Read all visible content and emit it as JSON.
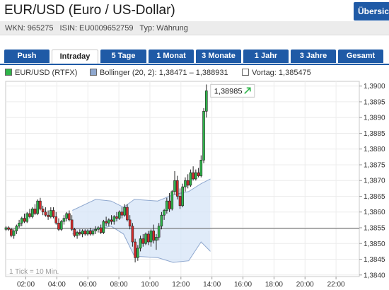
{
  "header": {
    "title": "EUR/USD (Euro / US-Dollar)",
    "overview_label": "Übersicht",
    "wkn": "WKN: 965275",
    "isin": "ISIN: EU0009652759",
    "type": "Typ: Währung"
  },
  "tabs": [
    {
      "label": "Push",
      "active": false
    },
    {
      "label": "Intraday",
      "active": true
    },
    {
      "label": "5 Tage",
      "active": false
    },
    {
      "label": "1 Monat",
      "active": false
    },
    {
      "label": "3 Monate",
      "active": false
    },
    {
      "label": "1 Jahr",
      "active": false
    },
    {
      "label": "3 Jahre",
      "active": false
    },
    {
      "label": "Gesamt",
      "active": false
    }
  ],
  "legend": {
    "price": "EUR/USD (RTFX)",
    "bollinger": "Bollinger (20, 2): 1,38471 – 1,388931",
    "prev_close": "Vortag: 1,385475"
  },
  "colors": {
    "brand_blue": "#1f5aa6",
    "candle_up": "#2fb54a",
    "candle_down": "#d62b2b",
    "bollinger_fill": "#d6e4f7",
    "bollinger_line": "#8fa8cf",
    "prev_close_line": "#666666"
  },
  "chart_data": {
    "type": "candlestick",
    "x_axis": {
      "min_hour": 0.7,
      "max_hour": 23.5,
      "tick_labels": [
        "02:00",
        "04:00",
        "06:00",
        "08:00",
        "10:00",
        "12:00",
        "14:00",
        "16:00",
        "18:00",
        "20:00",
        "22:00"
      ],
      "tick_hours": [
        2,
        4,
        6,
        8,
        10,
        12,
        14,
        16,
        18,
        20,
        22
      ]
    },
    "y_axis": {
      "min": 1.38395,
      "max": 1.39015,
      "side": "right",
      "tick_values": [
        1.384,
        1.3845,
        1.385,
        1.3855,
        1.386,
        1.3865,
        1.387,
        1.3875,
        1.388,
        1.3885,
        1.389,
        1.3895,
        1.39
      ],
      "tick_labels": [
        "1,3840",
        "1,3845",
        "1,3850",
        "1,3855",
        "1,3860",
        "1,3865",
        "1,3870",
        "1,3875",
        "1,3880",
        "1,3885",
        "1,3890",
        "1,3895",
        "1,3900"
      ]
    },
    "interval_label": "1 Tick = 10 Min.",
    "last_price": 1.38985,
    "last_price_label": "1,38985",
    "prev_close": 1.385475,
    "bollinger_upper": [
      [
        5.0,
        1.38605
      ],
      [
        6.5,
        1.3864
      ],
      [
        7.5,
        1.38635
      ],
      [
        8.3,
        1.38615
      ],
      [
        9.0,
        1.3864
      ],
      [
        10.5,
        1.38635
      ],
      [
        11.5,
        1.38655
      ],
      [
        12.5,
        1.38665
      ],
      [
        13.3,
        1.3869
      ],
      [
        13.9,
        1.38705
      ]
    ],
    "bollinger_lower": [
      [
        5.0,
        1.3853
      ],
      [
        6.5,
        1.38545
      ],
      [
        7.5,
        1.38555
      ],
      [
        8.3,
        1.3853
      ],
      [
        9.0,
        1.3846
      ],
      [
        10.5,
        1.38455
      ],
      [
        11.5,
        1.3844
      ],
      [
        12.5,
        1.38445
      ],
      [
        13.3,
        1.38505
      ],
      [
        13.9,
        1.38475
      ]
    ],
    "candles": [
      {
        "h": 0.72,
        "o": 1.38545,
        "hi": 1.38555,
        "lo": 1.3854,
        "c": 1.3855
      },
      {
        "h": 0.89,
        "o": 1.3855,
        "hi": 1.38555,
        "lo": 1.3854,
        "c": 1.38545
      },
      {
        "h": 1.06,
        "o": 1.38545,
        "hi": 1.3855,
        "lo": 1.3852,
        "c": 1.38525
      },
      {
        "h": 1.23,
        "o": 1.38525,
        "hi": 1.38545,
        "lo": 1.38515,
        "c": 1.3854
      },
      {
        "h": 1.4,
        "o": 1.3854,
        "hi": 1.3856,
        "lo": 1.3853,
        "c": 1.38555
      },
      {
        "h": 1.57,
        "o": 1.38555,
        "hi": 1.38575,
        "lo": 1.3855,
        "c": 1.38565
      },
      {
        "h": 1.74,
        "o": 1.38565,
        "hi": 1.38585,
        "lo": 1.38555,
        "c": 1.3858
      },
      {
        "h": 1.91,
        "o": 1.3858,
        "hi": 1.38595,
        "lo": 1.38565,
        "c": 1.3857
      },
      {
        "h": 2.08,
        "o": 1.3857,
        "hi": 1.386,
        "lo": 1.38565,
        "c": 1.38595
      },
      {
        "h": 2.25,
        "o": 1.38595,
        "hi": 1.3861,
        "lo": 1.3858,
        "c": 1.38585
      },
      {
        "h": 2.42,
        "o": 1.38585,
        "hi": 1.38615,
        "lo": 1.3858,
        "c": 1.3861
      },
      {
        "h": 2.59,
        "o": 1.3861,
        "hi": 1.38625,
        "lo": 1.3859,
        "c": 1.38595
      },
      {
        "h": 2.76,
        "o": 1.38595,
        "hi": 1.3864,
        "lo": 1.3859,
        "c": 1.38635
      },
      {
        "h": 2.93,
        "o": 1.38635,
        "hi": 1.38645,
        "lo": 1.38605,
        "c": 1.3861
      },
      {
        "h": 3.1,
        "o": 1.3861,
        "hi": 1.3862,
        "lo": 1.3859,
        "c": 1.386
      },
      {
        "h": 3.27,
        "o": 1.386,
        "hi": 1.38615,
        "lo": 1.38585,
        "c": 1.3859
      },
      {
        "h": 3.44,
        "o": 1.3859,
        "hi": 1.38605,
        "lo": 1.38575,
        "c": 1.38585
      },
      {
        "h": 3.61,
        "o": 1.38585,
        "hi": 1.38615,
        "lo": 1.3858,
        "c": 1.38605
      },
      {
        "h": 3.78,
        "o": 1.38605,
        "hi": 1.38615,
        "lo": 1.3858,
        "c": 1.38585
      },
      {
        "h": 3.95,
        "o": 1.38585,
        "hi": 1.386,
        "lo": 1.3856,
        "c": 1.38565
      },
      {
        "h": 4.12,
        "o": 1.38565,
        "hi": 1.3858,
        "lo": 1.3854,
        "c": 1.38545
      },
      {
        "h": 4.29,
        "o": 1.38545,
        "hi": 1.38575,
        "lo": 1.3854,
        "c": 1.3857
      },
      {
        "h": 4.46,
        "o": 1.3857,
        "hi": 1.3859,
        "lo": 1.3856,
        "c": 1.3858
      },
      {
        "h": 4.63,
        "o": 1.3858,
        "hi": 1.386,
        "lo": 1.3857,
        "c": 1.38595
      },
      {
        "h": 4.8,
        "o": 1.38595,
        "hi": 1.38605,
        "lo": 1.3857,
        "c": 1.38575
      },
      {
        "h": 4.97,
        "o": 1.38575,
        "hi": 1.3859,
        "lo": 1.3854,
        "c": 1.38545
      },
      {
        "h": 5.14,
        "o": 1.38545,
        "hi": 1.3855,
        "lo": 1.3852,
        "c": 1.38525
      },
      {
        "h": 5.31,
        "o": 1.38525,
        "hi": 1.3854,
        "lo": 1.38515,
        "c": 1.38535
      },
      {
        "h": 5.48,
        "o": 1.38535,
        "hi": 1.38545,
        "lo": 1.38525,
        "c": 1.3853
      },
      {
        "h": 5.65,
        "o": 1.3853,
        "hi": 1.38545,
        "lo": 1.3852,
        "c": 1.3854
      },
      {
        "h": 5.82,
        "o": 1.3854,
        "hi": 1.38545,
        "lo": 1.38525,
        "c": 1.3853
      },
      {
        "h": 5.99,
        "o": 1.3853,
        "hi": 1.38545,
        "lo": 1.38525,
        "c": 1.3854
      },
      {
        "h": 6.16,
        "o": 1.3854,
        "hi": 1.3855,
        "lo": 1.38525,
        "c": 1.3853
      },
      {
        "h": 6.33,
        "o": 1.3853,
        "hi": 1.38545,
        "lo": 1.38525,
        "c": 1.3854
      },
      {
        "h": 6.5,
        "o": 1.3854,
        "hi": 1.38555,
        "lo": 1.3853,
        "c": 1.38545
      },
      {
        "h": 6.67,
        "o": 1.38545,
        "hi": 1.38555,
        "lo": 1.38535,
        "c": 1.3855
      },
      {
        "h": 6.84,
        "o": 1.3855,
        "hi": 1.3856,
        "lo": 1.3853,
        "c": 1.38535
      },
      {
        "h": 7.01,
        "o": 1.38535,
        "hi": 1.38575,
        "lo": 1.3853,
        "c": 1.3857
      },
      {
        "h": 7.18,
        "o": 1.3857,
        "hi": 1.38585,
        "lo": 1.38555,
        "c": 1.38565
      },
      {
        "h": 7.35,
        "o": 1.38565,
        "hi": 1.3858,
        "lo": 1.38555,
        "c": 1.38575
      },
      {
        "h": 7.52,
        "o": 1.38575,
        "hi": 1.3859,
        "lo": 1.3856,
        "c": 1.3857
      },
      {
        "h": 7.69,
        "o": 1.3857,
        "hi": 1.3859,
        "lo": 1.3856,
        "c": 1.38585
      },
      {
        "h": 7.86,
        "o": 1.38585,
        "hi": 1.386,
        "lo": 1.3857,
        "c": 1.3858
      },
      {
        "h": 8.03,
        "o": 1.3858,
        "hi": 1.38605,
        "lo": 1.38575,
        "c": 1.386
      },
      {
        "h": 8.2,
        "o": 1.386,
        "hi": 1.38615,
        "lo": 1.3858,
        "c": 1.3859
      },
      {
        "h": 8.37,
        "o": 1.3859,
        "hi": 1.38625,
        "lo": 1.38585,
        "c": 1.38615
      },
      {
        "h": 8.54,
        "o": 1.38615,
        "hi": 1.38625,
        "lo": 1.3857,
        "c": 1.38575
      },
      {
        "h": 8.71,
        "o": 1.38575,
        "hi": 1.3859,
        "lo": 1.38545,
        "c": 1.38555
      },
      {
        "h": 8.88,
        "o": 1.38555,
        "hi": 1.38565,
        "lo": 1.3849,
        "c": 1.38505
      },
      {
        "h": 9.05,
        "o": 1.38505,
        "hi": 1.38515,
        "lo": 1.3844,
        "c": 1.38455
      },
      {
        "h": 9.22,
        "o": 1.38455,
        "hi": 1.38495,
        "lo": 1.38445,
        "c": 1.38485
      },
      {
        "h": 9.39,
        "o": 1.38485,
        "hi": 1.38525,
        "lo": 1.38475,
        "c": 1.38515
      },
      {
        "h": 9.56,
        "o": 1.38515,
        "hi": 1.3853,
        "lo": 1.3849,
        "c": 1.385
      },
      {
        "h": 9.73,
        "o": 1.385,
        "hi": 1.38535,
        "lo": 1.38495,
        "c": 1.3853
      },
      {
        "h": 9.9,
        "o": 1.3853,
        "hi": 1.3854,
        "lo": 1.38495,
        "c": 1.38505
      },
      {
        "h": 10.07,
        "o": 1.38505,
        "hi": 1.38545,
        "lo": 1.3849,
        "c": 1.3854
      },
      {
        "h": 10.24,
        "o": 1.3854,
        "hi": 1.3856,
        "lo": 1.385,
        "c": 1.3851
      },
      {
        "h": 10.41,
        "o": 1.3851,
        "hi": 1.3853,
        "lo": 1.3848,
        "c": 1.3852
      },
      {
        "h": 10.58,
        "o": 1.3852,
        "hi": 1.38565,
        "lo": 1.3851,
        "c": 1.38555
      },
      {
        "h": 10.75,
        "o": 1.38555,
        "hi": 1.386,
        "lo": 1.38545,
        "c": 1.3859
      },
      {
        "h": 10.92,
        "o": 1.3859,
        "hi": 1.3861,
        "lo": 1.38575,
        "c": 1.38605
      },
      {
        "h": 11.09,
        "o": 1.38605,
        "hi": 1.38645,
        "lo": 1.38595,
        "c": 1.38635
      },
      {
        "h": 11.26,
        "o": 1.38635,
        "hi": 1.3866,
        "lo": 1.386,
        "c": 1.3861
      },
      {
        "h": 11.43,
        "o": 1.3861,
        "hi": 1.3867,
        "lo": 1.38605,
        "c": 1.38665
      },
      {
        "h": 11.6,
        "o": 1.38665,
        "hi": 1.3873,
        "lo": 1.38655,
        "c": 1.387
      },
      {
        "h": 11.77,
        "o": 1.387,
        "hi": 1.38715,
        "lo": 1.3864,
        "c": 1.3865
      },
      {
        "h": 11.94,
        "o": 1.3865,
        "hi": 1.38675,
        "lo": 1.3861,
        "c": 1.3862
      },
      {
        "h": 12.11,
        "o": 1.3862,
        "hi": 1.3869,
        "lo": 1.38615,
        "c": 1.3868
      },
      {
        "h": 12.28,
        "o": 1.3868,
        "hi": 1.3871,
        "lo": 1.38665,
        "c": 1.387
      },
      {
        "h": 12.45,
        "o": 1.387,
        "hi": 1.3872,
        "lo": 1.38675,
        "c": 1.38685
      },
      {
        "h": 12.62,
        "o": 1.38685,
        "hi": 1.38735,
        "lo": 1.3868,
        "c": 1.38725
      },
      {
        "h": 12.79,
        "o": 1.38725,
        "hi": 1.38745,
        "lo": 1.387,
        "c": 1.38705
      },
      {
        "h": 12.96,
        "o": 1.38705,
        "hi": 1.38735,
        "lo": 1.387,
        "c": 1.38725
      },
      {
        "h": 13.13,
        "o": 1.38725,
        "hi": 1.3874,
        "lo": 1.3871,
        "c": 1.38715
      },
      {
        "h": 13.3,
        "o": 1.38715,
        "hi": 1.3878,
        "lo": 1.3871,
        "c": 1.38765
      },
      {
        "h": 13.47,
        "o": 1.38765,
        "hi": 1.3893,
        "lo": 1.38755,
        "c": 1.3892
      },
      {
        "h": 13.64,
        "o": 1.3892,
        "hi": 1.39005,
        "lo": 1.389,
        "c": 1.38985
      }
    ]
  }
}
